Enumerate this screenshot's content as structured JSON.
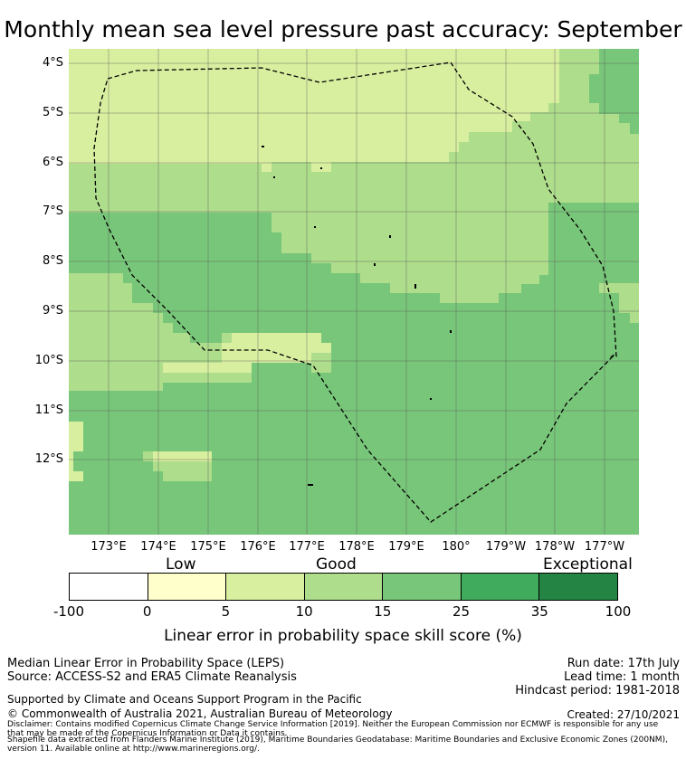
{
  "title": "Monthly mean sea level pressure past accuracy: September",
  "map": {
    "lat_labels": [
      "4°S",
      "5°S",
      "6°S",
      "7°S",
      "8°S",
      "9°S",
      "10°S",
      "11°S",
      "12°S"
    ],
    "lon_labels": [
      "173°E",
      "174°E",
      "175°E",
      "176°E",
      "177°E",
      "178°E",
      "179°E",
      "180°",
      "179°W",
      "178°W",
      "177°W"
    ],
    "colors": {
      "band_5_10": "#d9efa0",
      "band_10_15": "#aedd8c",
      "band_15_25": "#78c679",
      "band_25_35": "#41ab5d",
      "band_35_100": "#238443",
      "boundary": "#000000",
      "grid": "#555555"
    }
  },
  "legend": {
    "categories": [
      "Low",
      "Good",
      "Exceptional"
    ],
    "ticks": [
      "-100",
      "0",
      "5",
      "10",
      "15",
      "25",
      "35",
      "100"
    ],
    "segment_colors": [
      "#ffffff",
      "#ffffcc",
      "#d9efa0",
      "#aedd8c",
      "#78c679",
      "#41ab5d",
      "#238443"
    ],
    "label": "Linear error in probability space skill score (%)"
  },
  "footer": {
    "method": "Median Linear Error in Probability Space (LEPS)",
    "source": "Source: ACCESS-S2 and ERA5 Climate Reanalysis",
    "run_date": "Run date: 17th July",
    "lead_time": "Lead time: 1 month",
    "hindcast": "Hindcast period: 1981-2018",
    "supported": "Supported by Climate and Oceans Support Program in the Pacific",
    "copyright": "© Commonwealth of Australia 2021, Australian Bureau of Meteorology",
    "created": "Created: 27/10/2021",
    "disclaimer_1": "Disclaimer: Contains modified Copernicus Climate Change Service Information [2019]. Neither the European Commission nor ECMWF is responsible for any use",
    "disclaimer_2": "that may be made of the Copernicus Information or Data it contains.",
    "shapefile_1": "Shapefile data extracted from Flanders Marine Institute (2019), Maritime Boundaries Geodatabase: Maritime Boundaries and Exclusive Economic Zones (200NM),",
    "shapefile_2": "version 11. Available online at http://www.marineregions.org/."
  }
}
